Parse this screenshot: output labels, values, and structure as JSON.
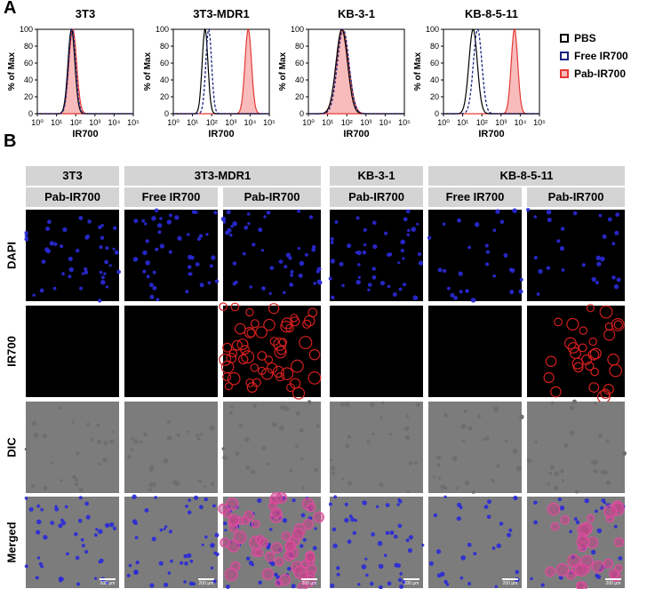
{
  "panel_a": {
    "letter": "A",
    "legend": [
      {
        "label": "PBS",
        "color": "#000000",
        "style": "solid"
      },
      {
        "label": "Free IR700",
        "color": "#1a237e",
        "style": "dashed"
      },
      {
        "label": "Pab-IR700",
        "color": "#e53935",
        "style": "filled"
      }
    ],
    "ylabel": "% of Max",
    "xlabel": "IR700"
  },
  "chart_data": [
    {
      "type": "line",
      "title": "3T3",
      "xlabel": "IR700",
      "ylabel": "% of Max",
      "xscale": "log",
      "xlim": [
        1,
        100000
      ],
      "ylim": [
        0,
        100
      ],
      "xticks": [
        "10⁰",
        "10¹",
        "10²",
        "10³",
        "10⁴",
        "10⁵"
      ],
      "yticks": [
        "0",
        "20",
        "40",
        "60",
        "80",
        "100"
      ],
      "series": [
        {
          "name": "PBS",
          "peak_x": 60,
          "width": 0.18
        },
        {
          "name": "Free IR700",
          "peak_x": 65,
          "width": 0.18
        },
        {
          "name": "Pab-IR700",
          "peak_x": 70,
          "width": 0.2
        }
      ]
    },
    {
      "type": "line",
      "title": "3T3-MDR1",
      "xlabel": "IR700",
      "ylabel": "% of Max",
      "xscale": "log",
      "xlim": [
        1,
        100000
      ],
      "ylim": [
        0,
        100
      ],
      "xticks": [
        "10⁰",
        "10¹",
        "10²",
        "10³",
        "10⁴",
        "10⁵"
      ],
      "yticks": [
        "0",
        "20",
        "40",
        "60",
        "80",
        "100"
      ],
      "series": [
        {
          "name": "PBS",
          "peak_x": 45,
          "width": 0.15
        },
        {
          "name": "Free IR700",
          "peak_x": 70,
          "width": 0.15
        },
        {
          "name": "Pab-IR700",
          "peak_x": 8000,
          "width": 0.17
        }
      ]
    },
    {
      "type": "line",
      "title": "KB-3-1",
      "xlabel": "IR700",
      "ylabel": "% of Max",
      "xscale": "log",
      "xlim": [
        1,
        100000
      ],
      "ylim": [
        0,
        100
      ],
      "xticks": [
        "10⁰",
        "10¹",
        "10²",
        "10³",
        "10⁴",
        "10⁵"
      ],
      "yticks": [
        "0",
        "20",
        "40",
        "60",
        "80",
        "100"
      ],
      "series": [
        {
          "name": "PBS",
          "peak_x": 55,
          "width": 0.3
        },
        {
          "name": "Free IR700",
          "peak_x": 65,
          "width": 0.3
        },
        {
          "name": "Pab-IR700",
          "peak_x": 60,
          "width": 0.32
        }
      ]
    },
    {
      "type": "line",
      "title": "KB-8-5-11",
      "xlabel": "IR700",
      "ylabel": "% of Max",
      "xscale": "log",
      "xlim": [
        1,
        100000
      ],
      "ylim": [
        0,
        100
      ],
      "xticks": [
        "10⁰",
        "10¹",
        "10²",
        "10³",
        "10⁴",
        "10⁵"
      ],
      "yticks": [
        "0",
        "20",
        "40",
        "60",
        "80",
        "100"
      ],
      "series": [
        {
          "name": "PBS",
          "peak_x": 35,
          "width": 0.22
        },
        {
          "name": "Free IR700",
          "peak_x": 60,
          "width": 0.22
        },
        {
          "name": "Pab-IR700",
          "peak_x": 5000,
          "width": 0.17
        }
      ]
    }
  ],
  "panel_b": {
    "letter": "B",
    "cell_lines": [
      "3T3",
      "3T3-MDR1",
      "KB-3-1",
      "KB-8-5-11"
    ],
    "treatments": [
      "Pab-IR700",
      "Free IR700",
      "Pab-IR700",
      "Pab-IR700",
      "Free IR700",
      "Pab-IR700"
    ],
    "rows": [
      "DAPI",
      "IR700",
      "DIC",
      "Merged"
    ],
    "scale_bar": "200 μm",
    "red_signal_columns": [
      2,
      5
    ]
  }
}
